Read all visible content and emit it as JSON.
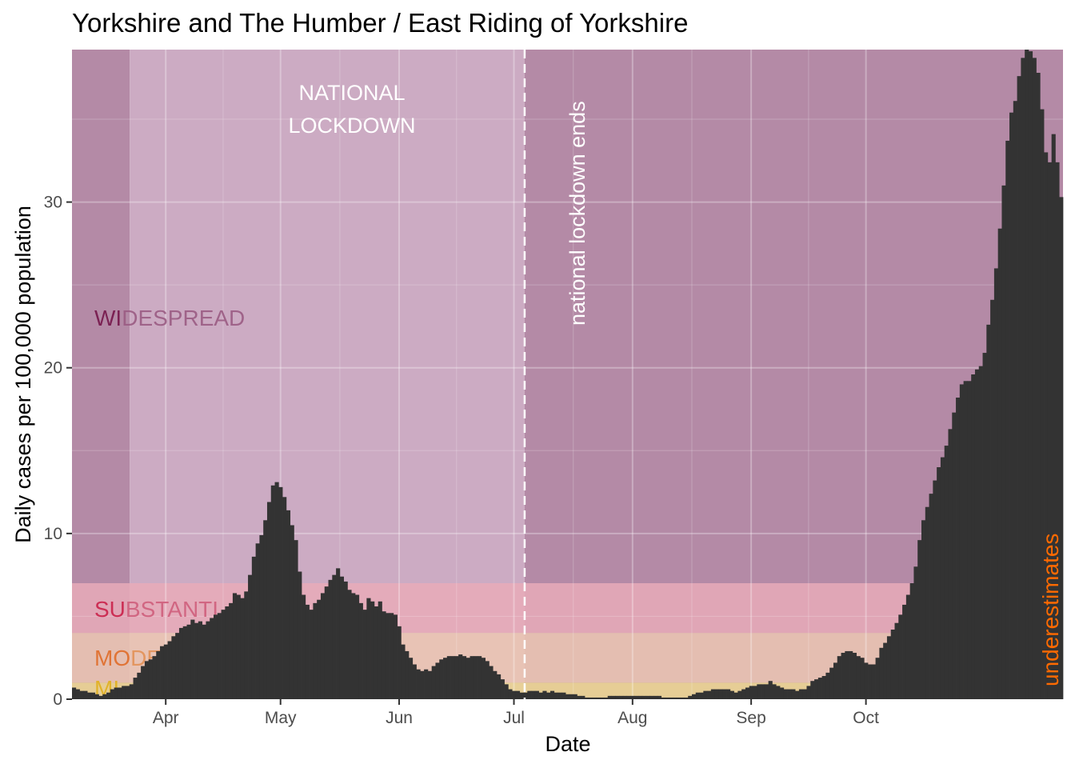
{
  "chart_data": {
    "type": "bar",
    "title": "Yorkshire and The Humber / East Riding of Yorkshire",
    "xlabel": "Date",
    "ylabel": "Daily cases per 100,000 population",
    "x_start": "2020-03-08",
    "ylim": [
      0,
      39.2
    ],
    "y_ticks": [
      0,
      10,
      20,
      30
    ],
    "x_ticks": [
      {
        "label": "Apr",
        "date": "2020-04-01"
      },
      {
        "label": "May",
        "date": "2020-05-01"
      },
      {
        "label": "Jun",
        "date": "2020-06-01"
      },
      {
        "label": "Jul",
        "date": "2020-07-01"
      },
      {
        "label": "Aug",
        "date": "2020-08-01"
      },
      {
        "label": "Sep",
        "date": "2020-09-01"
      },
      {
        "label": "Oct",
        "date": "2020-10-01"
      }
    ],
    "grid": true,
    "bar_color": "#333333",
    "values": [
      0.7,
      0.6,
      0.5,
      0.5,
      0.4,
      0.4,
      0.3,
      0.2,
      0.3,
      0.4,
      0.6,
      0.7,
      0.7,
      0.8,
      0.8,
      0.9,
      1.3,
      1.6,
      2.0,
      2.3,
      2.4,
      2.6,
      2.9,
      3.2,
      3.3,
      3.5,
      3.8,
      4.0,
      4.3,
      4.4,
      4.5,
      4.8,
      4.6,
      4.7,
      4.5,
      4.7,
      4.9,
      5.1,
      5.2,
      5.4,
      5.6,
      5.8,
      6.4,
      6.3,
      6.1,
      6.5,
      7.5,
      8.6,
      9.4,
      9.9,
      10.8,
      11.9,
      12.9,
      13.1,
      12.8,
      12.2,
      11.4,
      10.5,
      9.6,
      7.7,
      6.3,
      5.7,
      5.4,
      5.8,
      6.0,
      6.4,
      6.8,
      7.2,
      7.5,
      7.9,
      7.4,
      7.1,
      6.6,
      6.4,
      6.3,
      5.8,
      5.4,
      6.1,
      5.9,
      5.6,
      5.9,
      5.3,
      5.2,
      5.2,
      5.1,
      4.4,
      3.3,
      2.9,
      2.5,
      2.1,
      1.8,
      1.7,
      1.8,
      1.7,
      2.0,
      2.2,
      2.4,
      2.5,
      2.6,
      2.6,
      2.6,
      2.7,
      2.6,
      2.5,
      2.6,
      2.6,
      2.6,
      2.5,
      2.3,
      2.0,
      1.7,
      1.5,
      1.2,
      0.9,
      0.6,
      0.5,
      0.5,
      0.4,
      0.4,
      0.5,
      0.5,
      0.5,
      0.4,
      0.5,
      0.4,
      0.5,
      0.4,
      0.4,
      0.4,
      0.3,
      0.3,
      0.3,
      0.2,
      0.2,
      0.1,
      0.1,
      0.1,
      0.1,
      0.1,
      0.1,
      0.2,
      0.2,
      0.2,
      0.2,
      0.2,
      0.2,
      0.2,
      0.2,
      0.2,
      0.2,
      0.2,
      0.2,
      0.2,
      0.2,
      0.1,
      0.1,
      0.1,
      0.1,
      0.1,
      0.1,
      0.1,
      0.2,
      0.3,
      0.4,
      0.4,
      0.5,
      0.5,
      0.6,
      0.6,
      0.6,
      0.6,
      0.6,
      0.5,
      0.4,
      0.5,
      0.6,
      0.7,
      0.8,
      0.8,
      0.9,
      0.9,
      0.9,
      1.1,
      0.9,
      0.8,
      0.7,
      0.6,
      0.6,
      0.6,
      0.5,
      0.6,
      0.6,
      0.8,
      1.1,
      1.2,
      1.3,
      1.4,
      1.6,
      1.9,
      2.2,
      2.6,
      2.8,
      2.9,
      2.9,
      2.8,
      2.6,
      2.5,
      2.2,
      2.1,
      2.1,
      2.5,
      3.1,
      3.4,
      3.8,
      4.2,
      4.6,
      5.1,
      5.7,
      6.3,
      7.0,
      8.0,
      9.6,
      10.8,
      11.6,
      12.4,
      13.2,
      14.0,
      14.6,
      15.3,
      16.3,
      17.3,
      18.2,
      19.0,
      19.2,
      19.2,
      19.6,
      19.9,
      20.1,
      20.9,
      22.6,
      24.1,
      26.0,
      28.4,
      31.0,
      33.7,
      35.4,
      36.1,
      37.6,
      38.7,
      39.2,
      39.1,
      38.7,
      37.8,
      35.6,
      33.0,
      32.4,
      34.1,
      32.4,
      30.3
    ]
  }
}
